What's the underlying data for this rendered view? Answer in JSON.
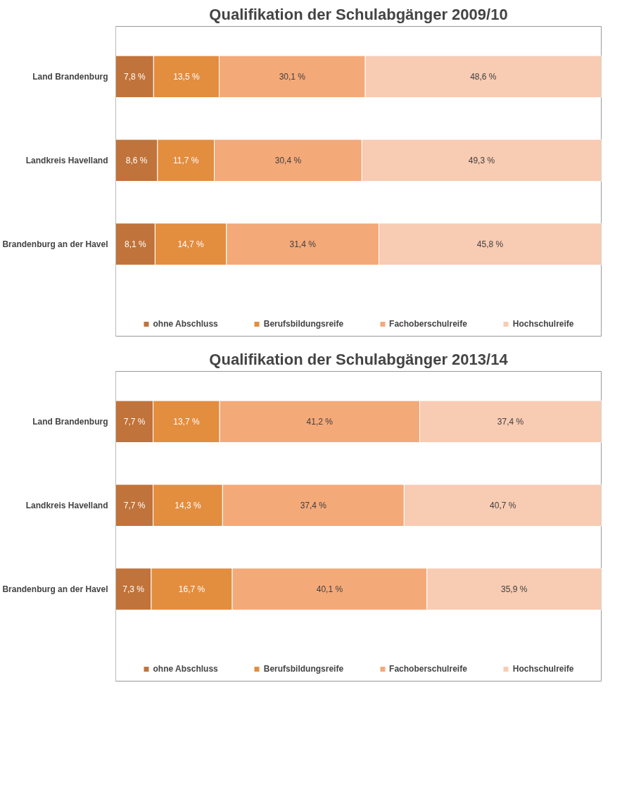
{
  "chart_data": [
    {
      "type": "bar",
      "title": "Qualifikation der Schulabgänger 2009/10",
      "orientation": "horizontal",
      "stacked": true,
      "categories": [
        "Land Brandenburg",
        "Landkreis Havelland",
        "Brandenburg an der Havel"
      ],
      "xlim": [
        0,
        100
      ],
      "tick_labels": "y",
      "grid": false,
      "legend": "bottom",
      "data_labels": true,
      "series": [
        {
          "name": "ohne Abschluss",
          "color": "#c0733a",
          "values": [
            7.8,
            8.6,
            8.1
          ],
          "value_labels": [
            "7,8 %",
            "8,6 %",
            "8,1 %"
          ]
        },
        {
          "name": "Berufsbildungsreife",
          "color": "#e38d3f",
          "values": [
            13.5,
            11.7,
            14.7
          ],
          "value_labels": [
            "13,5 %",
            "11,7 %",
            "14,7 %"
          ]
        },
        {
          "name": "Fachoberschulreife",
          "color": "#f4a979",
          "values": [
            30.1,
            30.4,
            31.4
          ],
          "value_labels": [
            "30,1 %",
            "30,4 %",
            "31,4 %"
          ]
        },
        {
          "name": "Hochschulreife",
          "color": "#f8cbb3",
          "values": [
            48.6,
            49.3,
            45.8
          ],
          "value_labels": [
            "48,6 %",
            "49,3 %",
            "45,8 %"
          ]
        }
      ]
    },
    {
      "type": "bar",
      "title": "Qualifikation der Schulabgänger 2013/14",
      "orientation": "horizontal",
      "stacked": true,
      "categories": [
        "Land Brandenburg",
        "Landkreis Havelland",
        "Brandenburg an der Havel"
      ],
      "xlim": [
        0,
        100
      ],
      "tick_labels": "y",
      "grid": false,
      "legend": "bottom",
      "data_labels": true,
      "series": [
        {
          "name": "ohne Abschluss",
          "color": "#c0733a",
          "values": [
            7.7,
            7.7,
            7.3
          ],
          "value_labels": [
            "7,7 %",
            "7,7 %",
            "7,3 %"
          ]
        },
        {
          "name": "Berufsbildungsreife",
          "color": "#e38d3f",
          "values": [
            13.7,
            14.3,
            16.7
          ],
          "value_labels": [
            "13,7 %",
            "14,3 %",
            "16,7 %"
          ]
        },
        {
          "name": "Fachoberschulreife",
          "color": "#f4a979",
          "values": [
            41.2,
            37.4,
            40.1
          ],
          "value_labels": [
            "41,2 %",
            "37,4 %",
            "40,1 %"
          ]
        },
        {
          "name": "Hochschulreife",
          "color": "#f8cbb3",
          "values": [
            37.4,
            40.7,
            35.9
          ],
          "value_labels": [
            "37,4 %",
            "40,7 %",
            "35,9 %"
          ]
        }
      ]
    }
  ]
}
